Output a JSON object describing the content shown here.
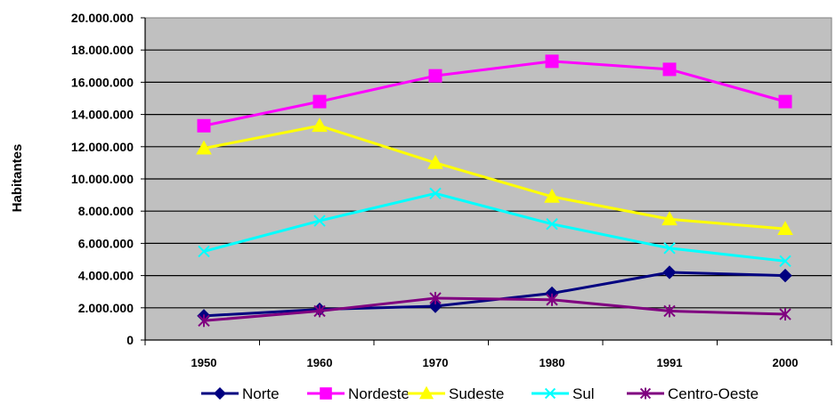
{
  "chart_data": {
    "type": "line",
    "title": "",
    "xlabel": "",
    "ylabel": "Habitantes",
    "categories": [
      "1950",
      "1960",
      "1970",
      "1980",
      "1991",
      "2000"
    ],
    "ylim": [
      0,
      20000000
    ],
    "y_ticks": [
      0,
      2000000,
      4000000,
      6000000,
      8000000,
      10000000,
      12000000,
      14000000,
      16000000,
      18000000,
      20000000
    ],
    "y_tick_labels": [
      "0",
      "2.000.000",
      "4.000.000",
      "6.000.000",
      "8.000.000",
      "10.000.000",
      "12.000.000",
      "14.000.000",
      "16.000.000",
      "18.000.000",
      "20.000.000"
    ],
    "grid": true,
    "legend_position": "bottom",
    "plot_background": "#c0c0c0",
    "series": [
      {
        "name": "Norte",
        "color": "#000080",
        "marker": "diamond",
        "values": [
          1500000,
          1900000,
          2100000,
          2900000,
          4200000,
          4000000
        ]
      },
      {
        "name": "Nordeste",
        "color": "#ff00ff",
        "marker": "square",
        "values": [
          13300000,
          14800000,
          16400000,
          17300000,
          16800000,
          14800000
        ]
      },
      {
        "name": "Sudeste",
        "color": "#ffff00",
        "marker": "triangle",
        "values": [
          11900000,
          13300000,
          11000000,
          8900000,
          7500000,
          6900000
        ]
      },
      {
        "name": "Sul",
        "color": "#00ffff",
        "marker": "x",
        "values": [
          5500000,
          7400000,
          9100000,
          7200000,
          5700000,
          4900000
        ]
      },
      {
        "name": "Centro-Oeste",
        "color": "#800080",
        "marker": "star",
        "values": [
          1200000,
          1800000,
          2600000,
          2500000,
          1800000,
          1600000
        ]
      }
    ]
  }
}
